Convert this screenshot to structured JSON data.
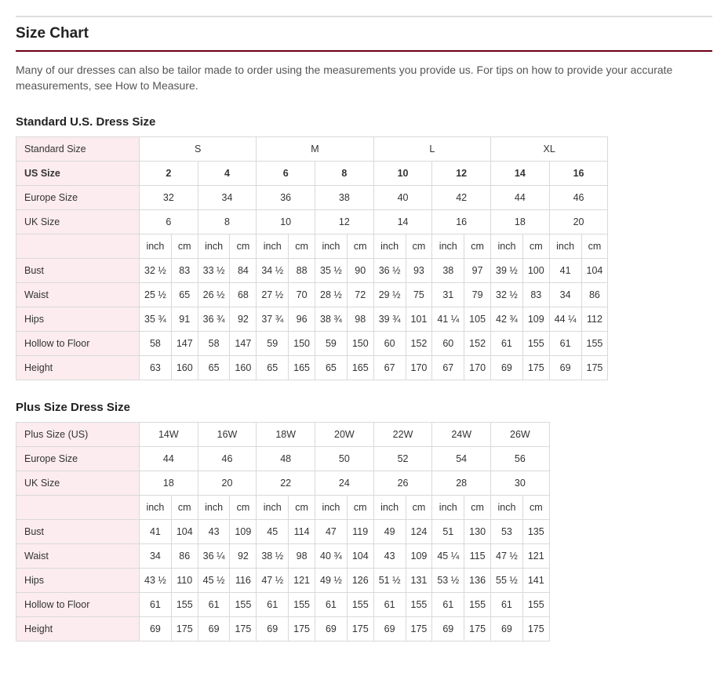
{
  "title": "Size Chart",
  "intro": "Many of our dresses can also be tailor made to order using the measurements you provide us. For tips on how to provide your accurate measurements, see How to Measure.",
  "colors": {
    "rule": "#6b0015",
    "label_bg": "#fcecef",
    "border": "#d9d9d9"
  },
  "standard": {
    "heading": "Standard U.S. Dress Size",
    "row_std_label": "Standard Size",
    "row_std": [
      "S",
      "M",
      "L",
      "XL"
    ],
    "row_us_label": "US Size",
    "row_us": [
      "2",
      "4",
      "6",
      "8",
      "10",
      "12",
      "14",
      "16"
    ],
    "row_eu_label": "Europe Size",
    "row_eu": [
      "32",
      "34",
      "36",
      "38",
      "40",
      "42",
      "44",
      "46"
    ],
    "row_uk_label": "UK Size",
    "row_uk": [
      "6",
      "8",
      "10",
      "12",
      "14",
      "16",
      "18",
      "20"
    ],
    "unit_inch": "inch",
    "unit_cm": "cm",
    "measures": [
      {
        "label": "Bust",
        "vals": [
          "32 ½",
          "83",
          "33 ½",
          "84",
          "34 ½",
          "88",
          "35 ½",
          "90",
          "36 ½",
          "93",
          "38",
          "97",
          "39 ½",
          "100",
          "41",
          "104"
        ]
      },
      {
        "label": "Waist",
        "vals": [
          "25 ½",
          "65",
          "26 ½",
          "68",
          "27 ½",
          "70",
          "28 ½",
          "72",
          "29 ½",
          "75",
          "31",
          "79",
          "32 ½",
          "83",
          "34",
          "86"
        ]
      },
      {
        "label": "Hips",
        "vals": [
          "35 ¾",
          "91",
          "36 ¾",
          "92",
          "37 ¾",
          "96",
          "38 ¾",
          "98",
          "39 ¾",
          "101",
          "41 ¼",
          "105",
          "42 ¾",
          "109",
          "44 ¼",
          "112"
        ]
      },
      {
        "label": "Hollow to Floor",
        "vals": [
          "58",
          "147",
          "58",
          "147",
          "59",
          "150",
          "59",
          "150",
          "60",
          "152",
          "60",
          "152",
          "61",
          "155",
          "61",
          "155"
        ]
      },
      {
        "label": "Height",
        "vals": [
          "63",
          "160",
          "65",
          "160",
          "65",
          "165",
          "65",
          "165",
          "67",
          "170",
          "67",
          "170",
          "69",
          "175",
          "69",
          "175"
        ]
      }
    ]
  },
  "plus": {
    "heading": "Plus Size Dress Size",
    "row_plus_label": "Plus Size (US)",
    "row_plus": [
      "14W",
      "16W",
      "18W",
      "20W",
      "22W",
      "24W",
      "26W"
    ],
    "row_eu_label": "Europe Size",
    "row_eu": [
      "44",
      "46",
      "48",
      "50",
      "52",
      "54",
      "56"
    ],
    "row_uk_label": "UK Size",
    "row_uk": [
      "18",
      "20",
      "22",
      "24",
      "26",
      "28",
      "30"
    ],
    "unit_inch": "inch",
    "unit_cm": "cm",
    "measures": [
      {
        "label": "Bust",
        "vals": [
          "41",
          "104",
          "43",
          "109",
          "45",
          "114",
          "47",
          "119",
          "49",
          "124",
          "51",
          "130",
          "53",
          "135"
        ]
      },
      {
        "label": "Waist",
        "vals": [
          "34",
          "86",
          "36 ¼",
          "92",
          "38 ½",
          "98",
          "40 ¾",
          "104",
          "43",
          "109",
          "45 ¼",
          "115",
          "47 ½",
          "121"
        ]
      },
      {
        "label": "Hips",
        "vals": [
          "43 ½",
          "110",
          "45 ½",
          "116",
          "47 ½",
          "121",
          "49 ½",
          "126",
          "51 ½",
          "131",
          "53 ½",
          "136",
          "55 ½",
          "141"
        ]
      },
      {
        "label": "Hollow to Floor",
        "vals": [
          "61",
          "155",
          "61",
          "155",
          "61",
          "155",
          "61",
          "155",
          "61",
          "155",
          "61",
          "155",
          "61",
          "155"
        ]
      },
      {
        "label": "Height",
        "vals": [
          "69",
          "175",
          "69",
          "175",
          "69",
          "175",
          "69",
          "175",
          "69",
          "175",
          "69",
          "175",
          "69",
          "175"
        ]
      }
    ]
  }
}
